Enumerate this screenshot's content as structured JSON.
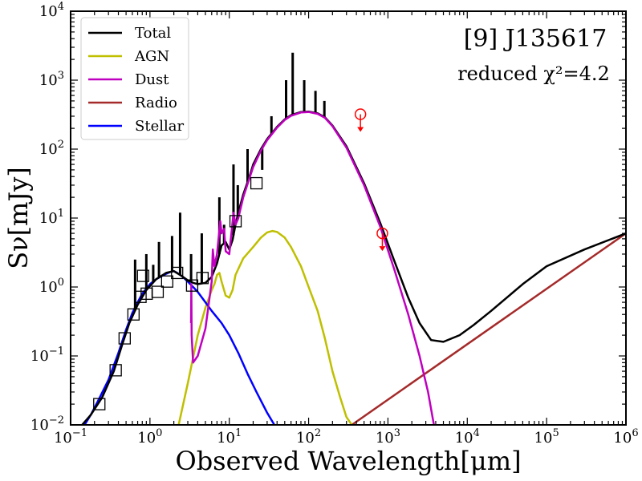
{
  "chart_data": {
    "type": "line",
    "title": "[9] J135617",
    "annotation": "reduced χ²=4.2",
    "xlabel": "Observed Wavelength[μm]",
    "ylabel": "Sν[mJy]",
    "x_scale": "log",
    "y_scale": "log",
    "xlim": [
      0.1,
      1000000
    ],
    "ylim": [
      0.01,
      10000
    ],
    "x_ticks": [
      {
        "value": 0.1,
        "base": "10",
        "exp": "−1"
      },
      {
        "value": 1,
        "base": "10",
        "exp": "0"
      },
      {
        "value": 10,
        "base": "10",
        "exp": "1"
      },
      {
        "value": 100,
        "base": "10",
        "exp": "2"
      },
      {
        "value": 1000,
        "base": "10",
        "exp": "3"
      },
      {
        "value": 10000,
        "base": "10",
        "exp": "4"
      },
      {
        "value": 100000,
        "base": "10",
        "exp": "5"
      },
      {
        "value": 1000000,
        "base": "10",
        "exp": "6"
      }
    ],
    "y_ticks": [
      {
        "value": 0.01,
        "base": "10",
        "exp": "−2"
      },
      {
        "value": 0.1,
        "base": "10",
        "exp": "−1"
      },
      {
        "value": 1,
        "base": "10",
        "exp": "0"
      },
      {
        "value": 10,
        "base": "10",
        "exp": "1"
      },
      {
        "value": 100,
        "base": "10",
        "exp": "2"
      },
      {
        "value": 1000,
        "base": "10",
        "exp": "3"
      },
      {
        "value": 10000,
        "base": "10",
        "exp": "4"
      }
    ],
    "grid": false,
    "legend_position": "top-left",
    "series": [
      {
        "name": "Total",
        "color": "#000000",
        "x": [
          0.14,
          0.18,
          0.25,
          0.35,
          0.45,
          0.55,
          0.7,
          0.9,
          1.2,
          1.6,
          2.0,
          2.5,
          3.0,
          3.5,
          4.0,
          5.0,
          6.0,
          7.0,
          8.0,
          9.0,
          10.0,
          11.0,
          12.0,
          13.0,
          15.0,
          18.0,
          20.0,
          25.0,
          30.0,
          40.0,
          50.0,
          60.0,
          80.0,
          100.0,
          130.0,
          160.0,
          200.0,
          300.0,
          500.0,
          800.0,
          1200.0,
          1800.0,
          2500.0,
          3500.0,
          5000.0,
          8000.0,
          12000.0,
          20000.0,
          50000.0,
          100000.0,
          300000.0,
          1000000.0
        ],
        "y": [
          0.01,
          0.014,
          0.025,
          0.06,
          0.15,
          0.3,
          0.55,
          0.9,
          1.3,
          1.6,
          1.7,
          1.45,
          1.25,
          1.15,
          1.1,
          1.15,
          1.4,
          2.2,
          4.0,
          4.5,
          3.5,
          4.8,
          8.0,
          12.0,
          22.0,
          40.0,
          60.0,
          100.0,
          140.0,
          210.0,
          270.0,
          310.0,
          345.0,
          350.0,
          330.0,
          290.0,
          220.0,
          110.0,
          32.0,
          8.5,
          2.4,
          0.7,
          0.3,
          0.17,
          0.16,
          0.2,
          0.28,
          0.45,
          1.1,
          2.0,
          3.5,
          6.0
        ],
        "spikes": [
          {
            "x": 0.65,
            "y": 2.5
          },
          {
            "x": 0.9,
            "y": 3.0
          },
          {
            "x": 1.1,
            "y": 2.1
          },
          {
            "x": 1.3,
            "y": 4.5
          },
          {
            "x": 1.9,
            "y": 5.5
          },
          {
            "x": 2.4,
            "y": 12.0
          },
          {
            "x": 3.3,
            "y": 3.0
          },
          {
            "x": 4.5,
            "y": 6.0
          },
          {
            "x": 7.5,
            "y": 20.0
          },
          {
            "x": 8.6,
            "y": 8.0
          },
          {
            "x": 11.3,
            "y": 60.0
          },
          {
            "x": 12.8,
            "y": 30.0
          },
          {
            "x": 17.0,
            "y": 100.0
          },
          {
            "x": 26.0,
            "y": 50.0
          },
          {
            "x": 34.0,
            "y": 300.0
          },
          {
            "x": 52.0,
            "y": 1000.0
          },
          {
            "x": 63.0,
            "y": 2500.0
          },
          {
            "x": 88.0,
            "y": 1000.0
          },
          {
            "x": 122.0,
            "y": 700.0
          },
          {
            "x": 158.0,
            "y": 500.0
          }
        ]
      },
      {
        "name": "AGN",
        "color": "#bfbf00",
        "x": [
          2.3,
          3.0,
          4.0,
          5.0,
          6.0,
          6.5,
          7.0,
          7.5,
          8.0,
          9.0,
          10.0,
          11.0,
          12.0,
          15.0,
          20.0,
          25.0,
          30.0,
          35.0,
          40.0,
          50.0,
          60.0,
          80.0,
          100.0,
          130.0,
          160.0,
          200.0,
          250.0,
          300.0,
          350.0
        ],
        "y": [
          0.01,
          0.04,
          0.2,
          0.5,
          0.9,
          1.1,
          1.5,
          1.6,
          1.2,
          0.75,
          0.7,
          0.9,
          1.5,
          2.6,
          3.8,
          5.2,
          6.2,
          6.5,
          6.3,
          5.2,
          3.8,
          2.0,
          1.0,
          0.45,
          0.18,
          0.06,
          0.025,
          0.013,
          0.01
        ]
      },
      {
        "name": "Dust",
        "color": "#bf00bf",
        "x": [
          3.3,
          3.32,
          3.35,
          3.5,
          4.0,
          5.0,
          6.0,
          6.2,
          6.5,
          7.0,
          7.7,
          8.0,
          8.6,
          9.0,
          10.0,
          11.3,
          12.0,
          13.0,
          15.0,
          18.0,
          20.0,
          25.0,
          30.0,
          40.0,
          50.0,
          60.0,
          80.0,
          100.0,
          130.0,
          160.0,
          200.0,
          300.0,
          500.0,
          800.0,
          1200.0,
          1800.0,
          2500.0,
          3200.0,
          3800.0
        ],
        "y": [
          0.3,
          1.1,
          0.2,
          0.08,
          0.1,
          0.25,
          1.2,
          3.5,
          2.0,
          3.0,
          9.0,
          6.0,
          7.0,
          3.3,
          3.0,
          12.0,
          8.0,
          10.0,
          20.0,
          38.0,
          55.0,
          95.0,
          135.0,
          205.0,
          265.0,
          305.0,
          340.0,
          345.0,
          325.0,
          285.0,
          215.0,
          105.0,
          30.0,
          7.5,
          1.8,
          0.4,
          0.1,
          0.03,
          0.01
        ]
      },
      {
        "name": "Radio",
        "color": "#a52a2a",
        "x": [
          350.0,
          1000000.0
        ],
        "y": [
          0.01,
          6.0
        ]
      },
      {
        "name": "Stellar",
        "color": "#0000ff",
        "x": [
          0.15,
          0.18,
          0.22,
          0.3,
          0.4,
          0.5,
          0.6,
          0.7,
          0.8,
          1.0,
          1.2,
          1.5,
          1.8,
          2.0,
          2.2,
          2.5,
          3.0,
          3.5,
          4.0,
          5.0,
          6.0,
          8.0,
          10.0,
          13.0,
          17.0,
          22.0,
          30.0,
          37.0
        ],
        "y": [
          0.01,
          0.014,
          0.022,
          0.045,
          0.11,
          0.24,
          0.42,
          0.6,
          0.8,
          1.1,
          1.3,
          1.5,
          1.65,
          1.7,
          1.6,
          1.45,
          1.2,
          1.0,
          0.85,
          0.6,
          0.45,
          0.3,
          0.2,
          0.11,
          0.055,
          0.03,
          0.015,
          0.01
        ]
      }
    ],
    "photometry": {
      "marker": "square",
      "x": [
        0.23,
        0.37,
        0.48,
        0.62,
        0.76,
        0.82,
        0.91,
        1.25,
        1.65,
        2.2,
        3.4,
        4.6,
        12.0,
        22.0
      ],
      "y": [
        0.02,
        0.062,
        0.18,
        0.4,
        0.72,
        1.45,
        0.8,
        0.85,
        1.2,
        1.6,
        1.05,
        1.35,
        9.0,
        32.0
      ]
    },
    "upper_limits": {
      "marker": "circle-with-down-arrow",
      "color": "#ff0000",
      "x": [
        450,
        850
      ],
      "y": [
        320,
        6.0
      ]
    }
  }
}
